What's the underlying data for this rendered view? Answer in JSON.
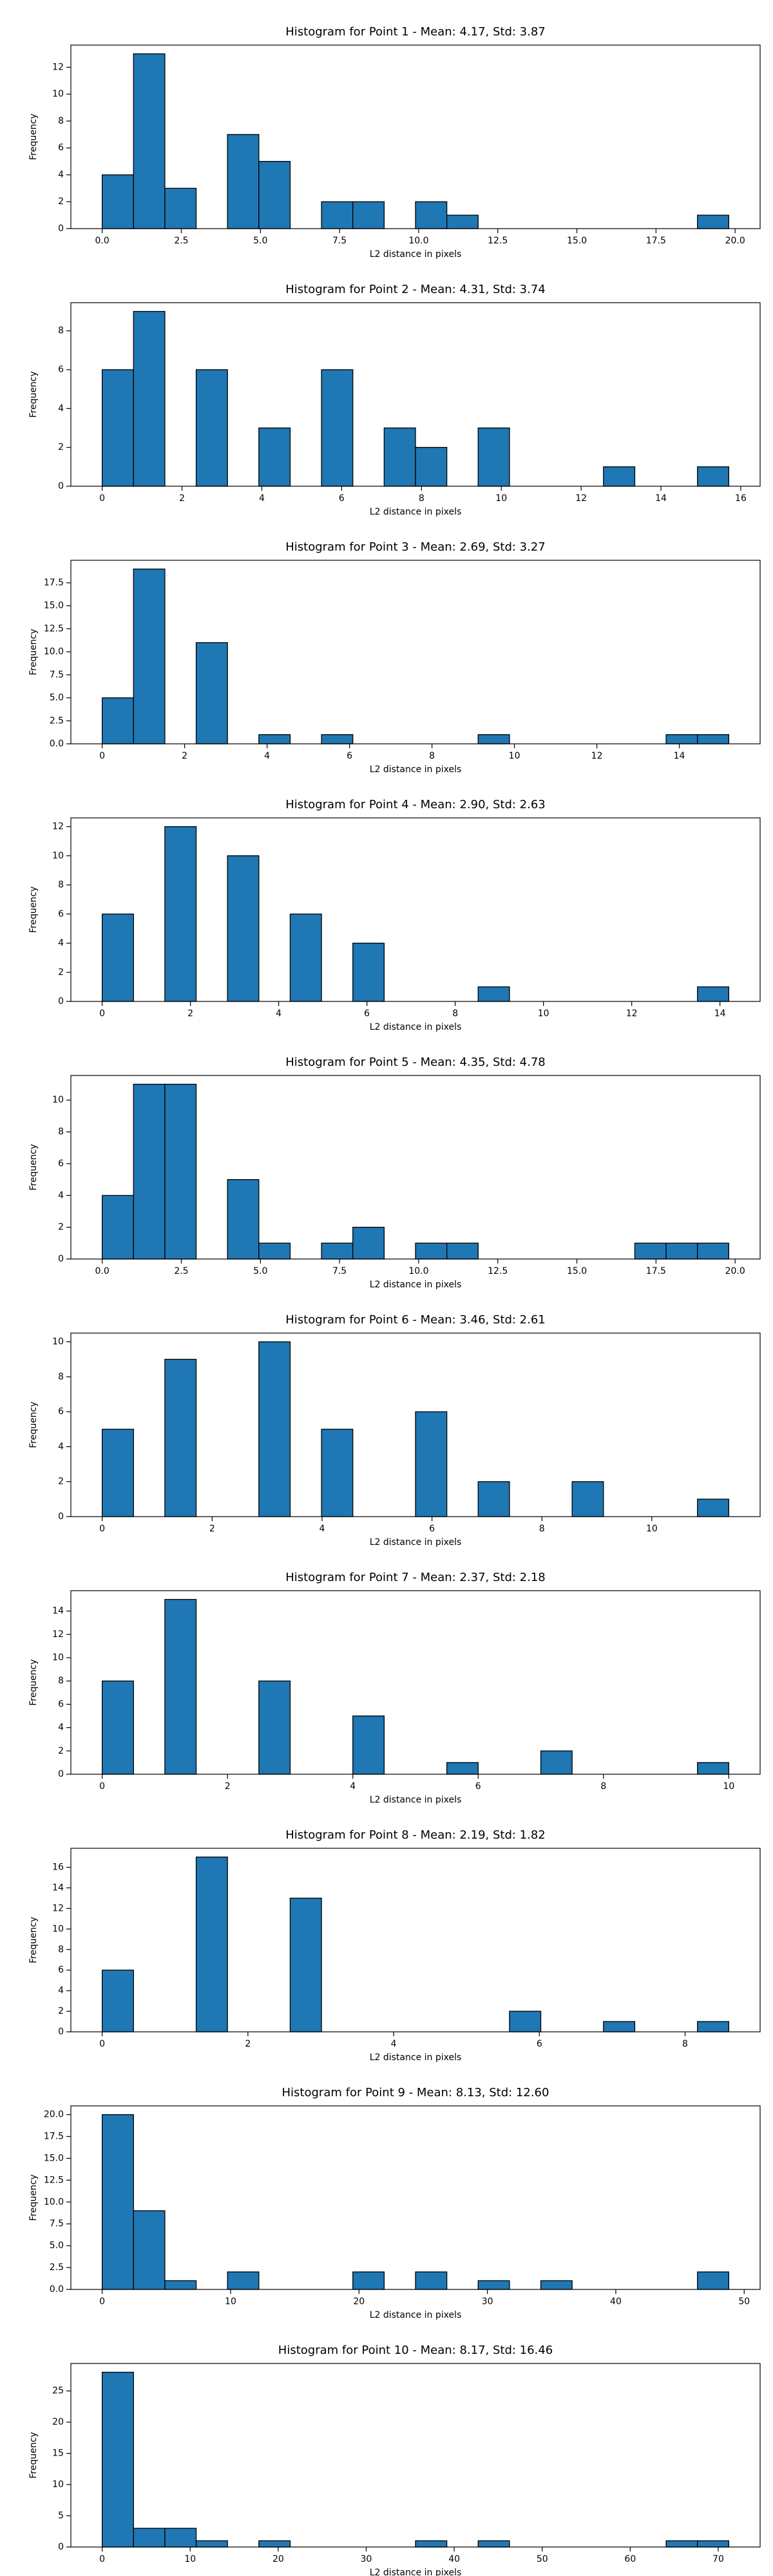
{
  "chart_data": [
    {
      "type": "histogram",
      "title": "Histogram for Point 1 - Mean: 4.17, Std: 3.87",
      "xlabel": "L2 distance in pixels",
      "ylabel": "Frequency",
      "color": "#1f77b4",
      "bins": [
        0,
        0.99,
        1.98,
        2.97,
        3.96,
        4.95,
        5.94,
        6.93,
        7.92,
        8.91,
        9.9,
        10.89,
        11.88,
        12.87,
        13.86,
        14.85,
        15.84,
        16.83,
        17.82,
        18.81,
        19.8
      ],
      "counts": [
        4,
        13,
        3,
        0,
        7,
        5,
        0,
        2,
        2,
        0,
        2,
        1,
        0,
        0,
        0,
        0,
        0,
        0,
        0,
        1
      ],
      "xlim": [
        -0.99,
        20.79
      ],
      "ylim": [
        0,
        13.65
      ],
      "xticks": [
        {
          "value": 0,
          "label": "0.0"
        },
        2.5,
        {
          "value": 5,
          "label": "5.0"
        },
        7.5,
        {
          "value": 10,
          "label": "10.0"
        },
        12.5,
        {
          "value": 15,
          "label": "15.0"
        },
        17.5,
        {
          "value": 20,
          "label": "20.0"
        }
      ],
      "yticks": [
        0,
        2,
        4,
        6,
        8,
        10,
        12
      ]
    },
    {
      "type": "histogram",
      "title": "Histogram for Point 2 - Mean: 4.31, Std: 3.74",
      "xlabel": "L2 distance in pixels",
      "ylabel": "Frequency",
      "color": "#1f77b4",
      "bins": [
        0,
        0.785,
        1.57,
        2.355,
        3.14,
        3.925,
        4.71,
        5.495,
        6.28,
        7.065,
        7.85,
        8.635,
        9.42,
        10.205,
        10.99,
        11.775,
        12.56,
        13.345,
        14.13,
        14.915,
        15.7
      ],
      "counts": [
        6,
        9,
        0,
        6,
        0,
        3,
        0,
        6,
        0,
        3,
        2,
        0,
        3,
        0,
        0,
        0,
        1,
        0,
        0,
        1
      ],
      "xlim": [
        -0.785,
        16.485
      ],
      "ylim": [
        0,
        9.45
      ],
      "xticks": [
        0,
        2,
        4,
        6,
        8,
        10,
        12,
        14,
        16
      ],
      "yticks": [
        0,
        2,
        4,
        6,
        8
      ]
    },
    {
      "type": "histogram",
      "title": "Histogram for Point 3 - Mean: 2.69, Std: 3.27",
      "xlabel": "L2 distance in pixels",
      "ylabel": "Frequency",
      "color": "#1f77b4",
      "bins": [
        0,
        0.76,
        1.52,
        2.28,
        3.04,
        3.8,
        4.56,
        5.32,
        6.08,
        6.84,
        7.6,
        8.36,
        9.12,
        9.88,
        10.64,
        11.4,
        12.16,
        12.92,
        13.68,
        14.44,
        15.2
      ],
      "counts": [
        5,
        19,
        0,
        11,
        0,
        1,
        0,
        1,
        0,
        0,
        0,
        0,
        1,
        0,
        0,
        0,
        0,
        0,
        1,
        1
      ],
      "xlim": [
        -0.76,
        15.96
      ],
      "ylim": [
        0,
        19.95
      ],
      "xticks": [
        0,
        2,
        4,
        6,
        8,
        10,
        12,
        14
      ],
      "yticks": [
        {
          "value": 0,
          "label": "0.0"
        },
        2.5,
        {
          "value": 5,
          "label": "5.0"
        },
        7.5,
        {
          "value": 10,
          "label": "10.0"
        },
        12.5,
        {
          "value": 15,
          "label": "15.0"
        },
        17.5
      ]
    },
    {
      "type": "histogram",
      "title": "Histogram for Point 4 - Mean: 2.90, Std: 2.63",
      "xlabel": "L2 distance in pixels",
      "ylabel": "Frequency",
      "color": "#1f77b4",
      "bins": [
        0,
        0.71,
        1.42,
        2.13,
        2.84,
        3.55,
        4.26,
        4.97,
        5.68,
        6.39,
        7.1,
        7.81,
        8.52,
        9.23,
        9.94,
        10.65,
        11.36,
        12.07,
        12.78,
        13.49,
        14.2
      ],
      "counts": [
        6,
        0,
        12,
        0,
        10,
        0,
        6,
        0,
        4,
        0,
        0,
        0,
        1,
        0,
        0,
        0,
        0,
        0,
        0,
        1
      ],
      "xlim": [
        -0.71,
        14.91
      ],
      "ylim": [
        0,
        12.6
      ],
      "xticks": [
        0,
        2,
        4,
        6,
        8,
        10,
        12,
        14
      ],
      "yticks": [
        0,
        2,
        4,
        6,
        8,
        10,
        12
      ]
    },
    {
      "type": "histogram",
      "title": "Histogram for Point 5 - Mean: 4.35, Std: 4.78",
      "xlabel": "L2 distance in pixels",
      "ylabel": "Frequency",
      "color": "#1f77b4",
      "bins": [
        0,
        0.99,
        1.98,
        2.97,
        3.96,
        4.95,
        5.94,
        6.93,
        7.92,
        8.91,
        9.9,
        10.89,
        11.88,
        12.87,
        13.86,
        14.85,
        15.84,
        16.83,
        17.82,
        18.81,
        19.8
      ],
      "counts": [
        4,
        11,
        11,
        0,
        5,
        1,
        0,
        1,
        2,
        0,
        1,
        1,
        0,
        0,
        0,
        0,
        0,
        1,
        1,
        1
      ],
      "xlim": [
        -0.99,
        20.79
      ],
      "ylim": [
        0,
        11.55
      ],
      "xticks": [
        {
          "value": 0,
          "label": "0.0"
        },
        2.5,
        {
          "value": 5,
          "label": "5.0"
        },
        7.5,
        {
          "value": 10,
          "label": "10.0"
        },
        12.5,
        {
          "value": 15,
          "label": "15.0"
        },
        17.5,
        {
          "value": 20,
          "label": "20.0"
        }
      ],
      "yticks": [
        0,
        2,
        4,
        6,
        8,
        10
      ]
    },
    {
      "type": "histogram",
      "title": "Histogram for Point 6 - Mean: 3.46, Std: 2.61",
      "xlabel": "L2 distance in pixels",
      "ylabel": "Frequency",
      "color": "#1f77b4",
      "bins": [
        0,
        0.57,
        1.14,
        1.71,
        2.28,
        2.85,
        3.42,
        3.99,
        4.56,
        5.13,
        5.7,
        6.27,
        6.84,
        7.41,
        7.98,
        8.55,
        9.12,
        9.69,
        10.26,
        10.83,
        11.4
      ],
      "counts": [
        5,
        0,
        9,
        0,
        0,
        10,
        0,
        5,
        0,
        0,
        6,
        0,
        2,
        0,
        0,
        2,
        0,
        0,
        0,
        1
      ],
      "xlim": [
        -0.57,
        11.97
      ],
      "ylim": [
        0,
        10.5
      ],
      "xticks": [
        0,
        2,
        4,
        6,
        8,
        10
      ],
      "yticks": [
        0,
        2,
        4,
        6,
        8,
        10
      ]
    },
    {
      "type": "histogram",
      "title": "Histogram for Point 7 - Mean: 2.37, Std: 2.18",
      "xlabel": "L2 distance in pixels",
      "ylabel": "Frequency",
      "color": "#1f77b4",
      "bins": [
        0,
        0.5,
        1,
        1.5,
        2,
        2.5,
        3,
        3.5,
        4,
        4.5,
        5,
        5.5,
        6,
        6.5,
        7,
        7.5,
        8,
        8.5,
        9,
        9.5,
        10
      ],
      "counts": [
        8,
        0,
        15,
        0,
        0,
        8,
        0,
        0,
        5,
        0,
        0,
        1,
        0,
        0,
        2,
        0,
        0,
        0,
        0,
        1
      ],
      "xlim": [
        -0.5,
        10.5
      ],
      "ylim": [
        0,
        15.75
      ],
      "xticks": [
        0,
        2,
        4,
        6,
        8,
        10
      ],
      "yticks": [
        0,
        2,
        4,
        6,
        8,
        10,
        12,
        14
      ]
    },
    {
      "type": "histogram",
      "title": "Histogram for Point 8 - Mean: 2.19, Std: 1.82",
      "xlabel": "L2 distance in pixels",
      "ylabel": "Frequency",
      "color": "#1f77b4",
      "bins": [
        0,
        0.43,
        0.86,
        1.29,
        1.72,
        2.15,
        2.58,
        3.01,
        3.44,
        3.87,
        4.3,
        4.73,
        5.16,
        5.59,
        6.02,
        6.45,
        6.88,
        7.31,
        7.74,
        8.17,
        8.6
      ],
      "counts": [
        6,
        0,
        0,
        17,
        0,
        0,
        13,
        0,
        0,
        0,
        0,
        0,
        0,
        2,
        0,
        0,
        1,
        0,
        0,
        1
      ],
      "xlim": [
        -0.43,
        9.03
      ],
      "ylim": [
        0,
        17.85
      ],
      "xticks": [
        0,
        2,
        4,
        6,
        8
      ],
      "yticks": [
        0,
        2,
        4,
        6,
        8,
        10,
        12,
        14,
        16
      ]
    },
    {
      "type": "histogram",
      "title": "Histogram for Point 9 - Mean: 8.13, Std: 12.60",
      "xlabel": "L2 distance in pixels",
      "ylabel": "Frequency",
      "color": "#1f77b4",
      "bins": [
        0,
        2.44,
        4.88,
        7.32,
        9.76,
        12.2,
        14.64,
        17.08,
        19.52,
        21.96,
        24.4,
        26.84,
        29.28,
        31.72,
        34.16,
        36.6,
        39.04,
        41.48,
        43.92,
        46.36,
        48.8
      ],
      "counts": [
        20,
        9,
        1,
        0,
        2,
        0,
        0,
        0,
        2,
        0,
        2,
        0,
        1,
        0,
        1,
        0,
        0,
        0,
        0,
        2
      ],
      "xlim": [
        -2.44,
        51.24
      ],
      "ylim": [
        0,
        21
      ],
      "xticks": [
        0,
        10,
        20,
        30,
        40,
        50
      ],
      "yticks": [
        {
          "value": 0,
          "label": "0.0"
        },
        2.5,
        {
          "value": 5,
          "label": "5.0"
        },
        7.5,
        {
          "value": 10,
          "label": "10.0"
        },
        12.5,
        {
          "value": 15,
          "label": "15.0"
        },
        17.5,
        {
          "value": 20,
          "label": "20.0"
        }
      ]
    },
    {
      "type": "histogram",
      "title": "Histogram for Point 10 - Mean: 8.17, Std: 16.46",
      "xlabel": "L2 distance in pixels",
      "ylabel": "Frequency",
      "color": "#1f77b4",
      "bins": [
        0,
        3.56,
        7.12,
        10.68,
        14.24,
        17.8,
        21.36,
        24.92,
        28.48,
        32.04,
        35.6,
        39.16,
        42.72,
        46.28,
        49.84,
        53.4,
        56.96,
        60.52,
        64.08,
        67.64,
        71.2
      ],
      "counts": [
        28,
        3,
        3,
        1,
        0,
        1,
        0,
        0,
        0,
        0,
        1,
        0,
        1,
        0,
        0,
        0,
        0,
        0,
        1,
        1
      ],
      "xlim": [
        -3.56,
        74.76
      ],
      "ylim": [
        0,
        29.4
      ],
      "xticks": [
        0,
        10,
        20,
        30,
        40,
        50,
        60,
        70
      ],
      "yticks": [
        0,
        5,
        10,
        15,
        20,
        25
      ]
    }
  ]
}
